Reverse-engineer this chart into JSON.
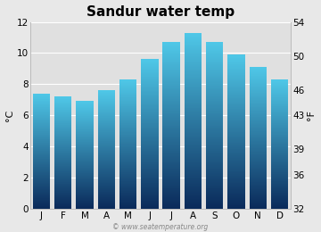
{
  "title": "Sandur water temp",
  "months": [
    "J",
    "F",
    "M",
    "A",
    "M",
    "J",
    "J",
    "A",
    "S",
    "O",
    "N",
    "D"
  ],
  "values": [
    7.4,
    7.2,
    6.9,
    7.6,
    8.3,
    9.6,
    10.7,
    11.3,
    10.7,
    9.9,
    9.1,
    8.3
  ],
  "ylim_c": [
    0,
    12
  ],
  "ylim_f": [
    32,
    54
  ],
  "yticks_c": [
    0,
    2,
    4,
    6,
    8,
    10,
    12
  ],
  "yticks_f": [
    32,
    36,
    39,
    43,
    46,
    50,
    54
  ],
  "ylabel_left": "°C",
  "ylabel_right": "°F",
  "bar_color_top": "#4fc8e8",
  "bar_color_bottom": "#0a2a5a",
  "background_color": "#e8e8e8",
  "plot_bg_color": "#e0e0e0",
  "watermark": "© www.seatemperature.org",
  "title_fontsize": 11,
  "tick_fontsize": 7.5,
  "label_fontsize": 8,
  "bar_width": 0.8
}
